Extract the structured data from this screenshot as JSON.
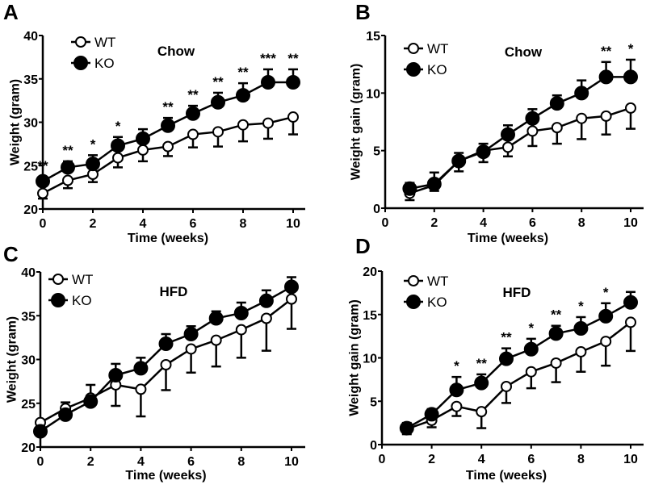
{
  "chart_data": [
    {
      "type": "line",
      "panel_label": "A",
      "title": "Chow",
      "xlabel": "Time (weeks)",
      "ylabel": "Weight (gram)",
      "xlim": [
        0,
        10
      ],
      "ylim": [
        20,
        40
      ],
      "xticks": [
        0,
        2,
        4,
        6,
        8,
        10
      ],
      "yticks": [
        20,
        25,
        30,
        35,
        40
      ],
      "legend": {
        "placement": "top-left",
        "entries": [
          "WT",
          "KO"
        ]
      },
      "x": [
        0,
        1,
        2,
        3,
        4,
        5,
        6,
        7,
        8,
        9,
        10
      ],
      "series": [
        {
          "name": "WT",
          "marker": "open-circle",
          "values": [
            21.8,
            23.3,
            24.0,
            25.9,
            26.8,
            27.2,
            28.6,
            28.9,
            29.7,
            29.9,
            30.6
          ],
          "sem": [
            0.6,
            0.9,
            0.9,
            1.1,
            1.3,
            1.1,
            1.5,
            1.7,
            1.9,
            1.8,
            2.0
          ]
        },
        {
          "name": "KO",
          "marker": "filled-circle",
          "values": [
            23.2,
            24.8,
            25.2,
            27.3,
            28.1,
            29.6,
            31.0,
            32.3,
            33.1,
            34.6,
            34.6
          ],
          "sem": [
            0.5,
            0.7,
            1.0,
            1.0,
            1.1,
            0.9,
            0.9,
            1.1,
            1.4,
            1.5,
            1.5
          ]
        }
      ],
      "significance": [
        "**",
        "**",
        "*",
        "*",
        "",
        "**",
        "**",
        "**",
        "**",
        "***",
        "**"
      ]
    },
    {
      "type": "line",
      "panel_label": "B",
      "title": "Chow",
      "xlabel": "Time (weeks)",
      "ylabel": "Weight gain (gram)",
      "xlim": [
        0,
        10
      ],
      "ylim": [
        0,
        15
      ],
      "xticks": [
        0,
        2,
        4,
        6,
        8,
        10
      ],
      "yticks": [
        0,
        5,
        10,
        15
      ],
      "legend": {
        "placement": "top-left",
        "entries": [
          "WT",
          "KO"
        ]
      },
      "x": [
        1,
        2,
        3,
        4,
        5,
        6,
        7,
        8,
        9,
        10
      ],
      "series": [
        {
          "name": "WT",
          "marker": "open-circle",
          "values": [
            1.3,
            2.0,
            4.1,
            5.0,
            5.3,
            6.7,
            7.0,
            7.8,
            8.0,
            8.7
          ],
          "sem": [
            0.6,
            0.5,
            0.9,
            1.0,
            0.8,
            1.3,
            1.4,
            1.8,
            1.6,
            1.8
          ]
        },
        {
          "name": "KO",
          "marker": "filled-circle",
          "values": [
            1.7,
            2.1,
            4.1,
            4.9,
            6.4,
            7.8,
            9.1,
            10.0,
            11.4,
            11.4
          ],
          "sem": [
            0.5,
            1.0,
            0.7,
            0.7,
            0.8,
            0.8,
            0.7,
            1.1,
            1.3,
            1.5
          ]
        }
      ],
      "significance": [
        "",
        "",
        "",
        "",
        "",
        "",
        "",
        "",
        "**",
        "*"
      ]
    },
    {
      "type": "line",
      "panel_label": "C",
      "title": "HFD",
      "xlabel": "Time (weeks)",
      "ylabel": "Weight (gram)",
      "xlim": [
        0,
        10
      ],
      "ylim": [
        20,
        40
      ],
      "xticks": [
        0,
        2,
        4,
        6,
        8,
        10
      ],
      "yticks": [
        20,
        25,
        30,
        35,
        40
      ],
      "legend": {
        "placement": "top-left",
        "entries": [
          "WT",
          "KO"
        ]
      },
      "x": [
        0,
        1,
        2,
        3,
        4,
        5,
        6,
        7,
        8,
        9,
        10
      ],
      "series": [
        {
          "name": "WT",
          "marker": "open-circle",
          "values": [
            22.8,
            24.4,
            25.6,
            27.1,
            26.6,
            29.4,
            31.2,
            32.2,
            33.4,
            34.7,
            36.9
          ],
          "sem": [
            0.3,
            0.3,
            0.5,
            2.4,
            3.1,
            2.9,
            2.7,
            3.0,
            3.2,
            3.7,
            3.4
          ]
        },
        {
          "name": "KO",
          "marker": "filled-circle",
          "values": [
            21.8,
            23.7,
            25.2,
            28.2,
            29.0,
            31.8,
            32.9,
            34.7,
            35.3,
            36.7,
            38.3
          ],
          "sem": [
            0.9,
            1.4,
            1.9,
            1.3,
            1.2,
            1.1,
            0.9,
            0.8,
            1.2,
            1.2,
            1.1
          ]
        }
      ],
      "significance": [
        "",
        "",
        "",
        "",
        "",
        "",
        "",
        "",
        "",
        "",
        ""
      ]
    },
    {
      "type": "line",
      "panel_label": "D",
      "title": "HFD",
      "xlabel": "Time (weeks)",
      "ylabel": "Weight gain (gram)",
      "xlim": [
        0,
        10
      ],
      "ylim": [
        0,
        20
      ],
      "xticks": [
        0,
        2,
        4,
        6,
        8,
        10
      ],
      "yticks": [
        0,
        5,
        10,
        15,
        20
      ],
      "legend": {
        "placement": "top-left",
        "entries": [
          "WT",
          "KO"
        ]
      },
      "x": [
        1,
        2,
        3,
        4,
        5,
        6,
        7,
        8,
        9,
        10
      ],
      "series": [
        {
          "name": "WT",
          "marker": "open-circle",
          "values": [
            1.8,
            2.8,
            4.4,
            3.8,
            6.7,
            8.4,
            9.4,
            10.7,
            11.9,
            14.1
          ],
          "sem": [
            0.6,
            0.8,
            1.1,
            1.9,
            1.9,
            1.9,
            2.2,
            2.3,
            2.8,
            3.3
          ]
        },
        {
          "name": "KO",
          "marker": "filled-circle",
          "values": [
            1.9,
            3.5,
            6.3,
            7.1,
            9.9,
            11.0,
            12.8,
            13.4,
            14.8,
            16.4
          ],
          "sem": [
            0.6,
            0.6,
            1.5,
            1.0,
            1.2,
            1.2,
            0.9,
            1.3,
            1.5,
            1.2
          ]
        }
      ],
      "significance": [
        "",
        "",
        "*",
        "**",
        "**",
        "*",
        "**",
        "*",
        "*",
        ""
      ]
    }
  ]
}
